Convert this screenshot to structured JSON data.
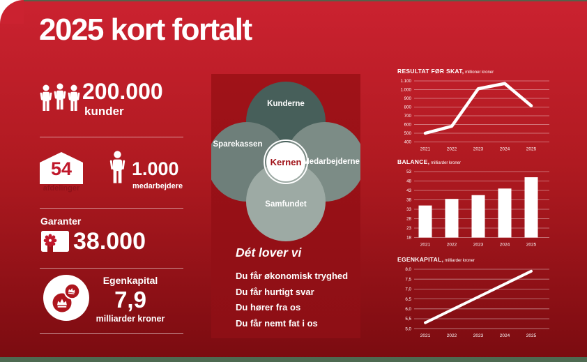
{
  "page_title": "2025 kort fortalt",
  "stats": {
    "kunder": {
      "value": "200.000",
      "label": "kunder"
    },
    "afdelinger": {
      "value": "54",
      "label": "afdelinger"
    },
    "medarbejdere": {
      "value": "1.000",
      "label": "medarbejdere"
    },
    "garanter": {
      "heading": "Garanter",
      "value": "38.000"
    },
    "egenkapital": {
      "heading": "Egenkapital",
      "value": "7,9",
      "label": "milliarder kroner"
    }
  },
  "venn": {
    "top": "Kunderne",
    "left": "Sparekassen",
    "right": "Medarbejderne",
    "bottom": "Samfundet",
    "center": "Kernen"
  },
  "promises": {
    "heading": "Dét lover vi",
    "items": [
      "Du får økonomisk tryghed",
      "Du får hurtigt svar",
      "Du hører fra os",
      "Du får nemt fat i os"
    ]
  },
  "colors": {
    "background_top": "#CB2230",
    "background_bottom": "#7A0B10",
    "panel": "#A01218",
    "accent_red": "#C0182B",
    "venn_top": "#475F5A",
    "venn_left": "#6E7F7A",
    "venn_right": "#7C8C86",
    "venn_bottom": "#9DAAA4",
    "top_line": "#57604A",
    "footer_bar": "#4E6A51",
    "chart_white": "#FFFFFF"
  },
  "chart_data": [
    {
      "id": "resultat-foer-skat",
      "type": "line",
      "title": "RESULTAT FØR SKAT,",
      "subtitle": "millioner kroner",
      "categories": [
        "2021",
        "2022",
        "2023",
        "2024",
        "2025"
      ],
      "values": [
        500,
        580,
        1010,
        1070,
        815
      ],
      "ylim": [
        400,
        1100
      ],
      "yticks": [
        1100,
        1000,
        900,
        800,
        700,
        600,
        500,
        400
      ],
      "ytick_labels": [
        "1.100",
        "1.000",
        "900",
        "800",
        "700",
        "600",
        "500",
        "400"
      ],
      "grid": true,
      "legend": false
    },
    {
      "id": "balance",
      "type": "bar",
      "title": "BALANCE,",
      "subtitle": "milliarder kroner",
      "categories": [
        "2021",
        "2022",
        "2023",
        "2024",
        "2025"
      ],
      "values": [
        35,
        38.5,
        40.5,
        44,
        50
      ],
      "ylim": [
        18,
        53
      ],
      "yticks": [
        53,
        48,
        43,
        38,
        33,
        28,
        23,
        18
      ],
      "ytick_labels": [
        "53",
        "48",
        "43",
        "38",
        "33",
        "28",
        "23",
        "18"
      ],
      "grid": true,
      "legend": false
    },
    {
      "id": "egenkapital",
      "type": "line",
      "title": "EGENKAPITAL,",
      "subtitle": "milliarder kroner",
      "categories": [
        "2021",
        "2022",
        "2023",
        "2024",
        "2025"
      ],
      "values": [
        5.3,
        5.95,
        6.6,
        7.25,
        7.9
      ],
      "ylim": [
        5.0,
        8.0
      ],
      "yticks": [
        8.0,
        7.5,
        7.0,
        6.5,
        6.0,
        5.5,
        5.0
      ],
      "ytick_labels": [
        "8,0",
        "7,5",
        "7,0",
        "6,5",
        "6,0",
        "5,5",
        "5,0"
      ],
      "grid": true,
      "legend": false
    }
  ]
}
